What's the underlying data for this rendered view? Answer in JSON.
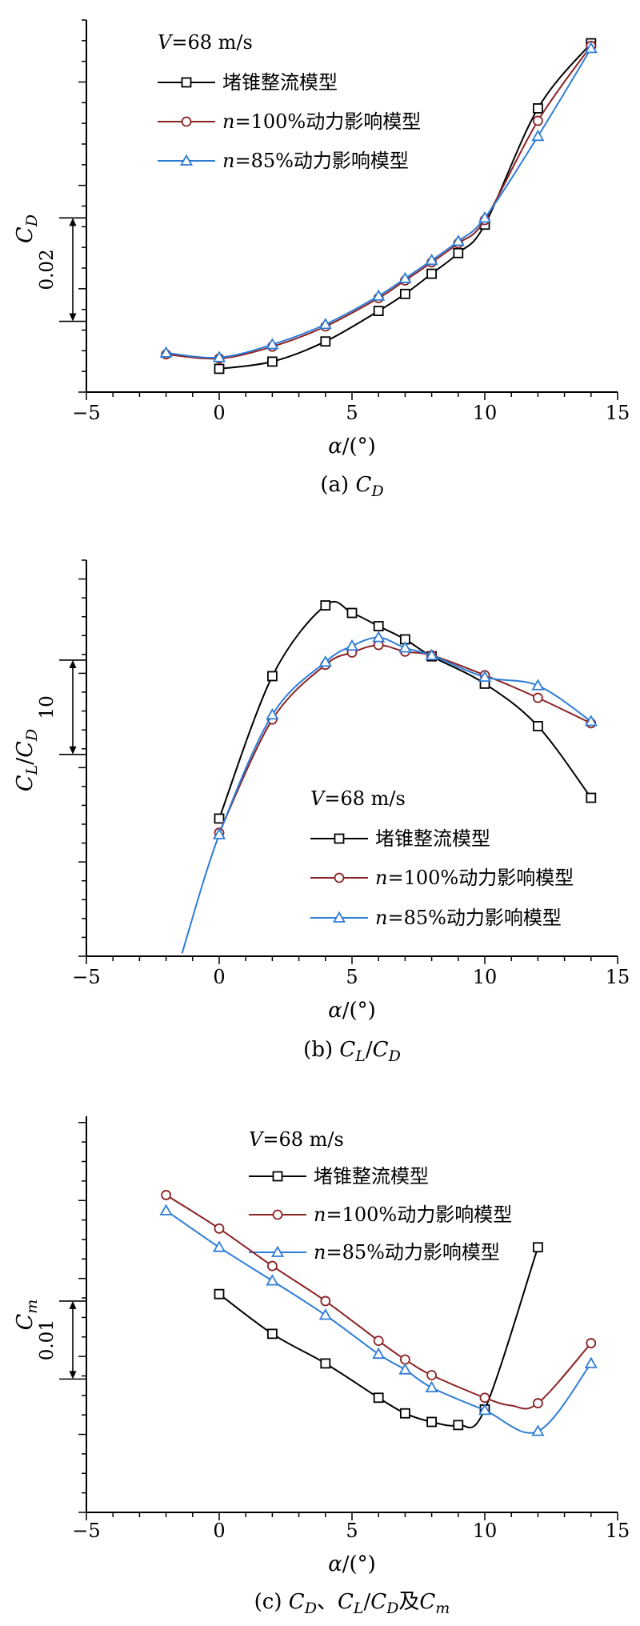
{
  "figure": {
    "background": "#ffffff"
  },
  "colors": {
    "series_black": "#000000",
    "series_darkred": "#8B2224",
    "series_blue": "#2E7CD6"
  },
  "chart_data": [
    {
      "id": "a",
      "type": "line",
      "caption_plain": "(a) CD",
      "caption_segs": [
        {
          "t": "(a) "
        },
        {
          "t": "C",
          "i": 1
        },
        {
          "t": "D",
          "i": 1,
          "sub": 1
        }
      ],
      "ylabel_plain": "CD",
      "ylabel_segs": [
        {
          "t": "C",
          "i": 1
        },
        {
          "t": "D",
          "i": 1,
          "sub": 1
        }
      ],
      "xlabel_plain": "α/(°)",
      "xlabel_segs": [
        {
          "t": "α",
          "i": 1
        },
        {
          "t": "/(°)"
        }
      ],
      "annotation_plain": "V=68 m/s",
      "annotation_segs": [
        {
          "t": "V",
          "i": 1
        },
        {
          "t": "=68 m/s"
        }
      ],
      "xlim": [
        -5,
        15
      ],
      "xticks": {
        "values": [
          -5,
          0,
          5,
          10,
          15
        ],
        "labels": [
          "−5",
          "0",
          "5",
          "10",
          "15"
        ],
        "minor_step": 1
      },
      "ylim": [
        0,
        0.072
      ],
      "ytick_minor_step": 0.004,
      "ytick_major_step": 0.02,
      "y_axis_numeric_labels": false,
      "scale_bar": {
        "label": "0.02",
        "from": 0.0137,
        "to": 0.0337
      },
      "series": [
        {
          "name": "堵锥整流模型",
          "name_segs": [
            {
              "t": "堵锥整流模型"
            }
          ],
          "marker": "square",
          "color": "#000000",
          "x": [
            0,
            2,
            4,
            6,
            7,
            8,
            9,
            10,
            12,
            14
          ],
          "y": [
            0.0045,
            0.0059,
            0.0098,
            0.0157,
            0.019,
            0.0229,
            0.0269,
            0.0324,
            0.0549,
            0.0675
          ]
        },
        {
          "name": "n=100%动力影响模型",
          "name_segs": [
            {
              "t": "n",
              "i": 1
            },
            {
              "t": "=100%动力影响模型"
            }
          ],
          "marker": "circle",
          "color": "#8B2224",
          "x": [
            -2,
            0,
            2,
            4,
            6,
            7,
            8,
            9,
            10,
            12,
            14
          ],
          "y": [
            0.0073,
            0.0065,
            0.0088,
            0.0127,
            0.0182,
            0.0216,
            0.0251,
            0.0288,
            0.0333,
            0.0525,
            0.067
          ]
        },
        {
          "name": "n=85%动力影响模型",
          "name_segs": [
            {
              "t": "n",
              "i": 1
            },
            {
              "t": "=85%动力影响模型"
            }
          ],
          "marker": "triangle",
          "color": "#2E7CD6",
          "x": [
            -2,
            0,
            2,
            4,
            6,
            7,
            8,
            9,
            10,
            12,
            14
          ],
          "y": [
            0.0076,
            0.0067,
            0.0092,
            0.0131,
            0.0186,
            0.022,
            0.0255,
            0.0292,
            0.0337,
            0.0495,
            0.0665
          ]
        }
      ]
    },
    {
      "id": "b",
      "type": "line",
      "caption_plain": "(b) CL/CD",
      "caption_segs": [
        {
          "t": "(b) "
        },
        {
          "t": "C",
          "i": 1
        },
        {
          "t": "L",
          "i": 1,
          "sub": 1
        },
        {
          "t": "/"
        },
        {
          "t": "C",
          "i": 1
        },
        {
          "t": "D",
          "i": 1,
          "sub": 1
        }
      ],
      "ylabel_plain": "CL/CD",
      "ylabel_segs": [
        {
          "t": "C",
          "i": 1
        },
        {
          "t": "L",
          "i": 1,
          "sub": 1
        },
        {
          "t": "/"
        },
        {
          "t": "C",
          "i": 1
        },
        {
          "t": "D",
          "i": 1,
          "sub": 1
        }
      ],
      "xlabel_plain": "α/(°)",
      "xlabel_segs": [
        {
          "t": "α",
          "i": 1
        },
        {
          "t": "/(°)"
        }
      ],
      "annotation_plain": "V=68 m/s",
      "annotation_segs": [
        {
          "t": "V",
          "i": 1
        },
        {
          "t": "=68 m/s"
        }
      ],
      "xlim": [
        -5,
        15
      ],
      "xticks": {
        "values": [
          -5,
          0,
          5,
          10,
          15
        ],
        "labels": [
          "−5",
          "0",
          "5",
          "10",
          "15"
        ],
        "minor_step": 1
      },
      "ylim": [
        0,
        42
      ],
      "ytick_minor_step": 2,
      "ytick_major_step": 10,
      "y_axis_numeric_labels": false,
      "scale_bar": {
        "label": "10",
        "from": 21.4,
        "to": 31.4
      },
      "series": [
        {
          "name": "堵锥整流模型",
          "name_segs": [
            {
              "t": "堵锥整流模型"
            }
          ],
          "marker": "square",
          "color": "#000000",
          "x": [
            0,
            2,
            4,
            5,
            6,
            7,
            8,
            10,
            12,
            14
          ],
          "y": [
            14.6,
            29.7,
            37.2,
            36.4,
            35.0,
            33.6,
            31.8,
            28.9,
            24.4,
            16.8
          ]
        },
        {
          "name": "n=100%动力影响模型",
          "name_segs": [
            {
              "t": "n",
              "i": 1
            },
            {
              "t": "=100%动力影响模型"
            }
          ],
          "marker": "circle",
          "color": "#8B2224",
          "x": [
            0,
            2,
            4,
            5,
            6,
            7,
            8,
            10,
            12,
            14
          ],
          "y": [
            13.1,
            25.1,
            30.9,
            32.2,
            33.0,
            32.3,
            31.9,
            29.8,
            27.4,
            24.7
          ]
        },
        {
          "name": "n=85%动力影响模型",
          "name_segs": [
            {
              "t": "n",
              "i": 1
            },
            {
              "t": "=85%动力影响模型"
            }
          ],
          "marker": "triangle",
          "color": "#2E7CD6",
          "x": [
            -1.4,
            0,
            2,
            4,
            5,
            6,
            7,
            8,
            10,
            12,
            14
          ],
          "y": [
            0.3,
            12.9,
            25.6,
            31.2,
            32.9,
            33.8,
            32.7,
            31.9,
            29.6,
            28.7,
            24.9
          ],
          "skip": [
            0
          ]
        }
      ]
    },
    {
      "id": "c",
      "type": "line",
      "caption_plain": "(c) CD、CL/CD及Cm",
      "caption_segs": [
        {
          "t": "(c) "
        },
        {
          "t": "C",
          "i": 1
        },
        {
          "t": "D",
          "i": 1,
          "sub": 1
        },
        {
          "t": "、"
        },
        {
          "t": "C",
          "i": 1
        },
        {
          "t": "L",
          "i": 1,
          "sub": 1
        },
        {
          "t": "/"
        },
        {
          "t": "C",
          "i": 1
        },
        {
          "t": "D",
          "i": 1,
          "sub": 1
        },
        {
          "t": "及"
        },
        {
          "t": "C",
          "i": 1
        },
        {
          "t": "m",
          "i": 1,
          "sub": 1
        }
      ],
      "ylabel_plain": "Cm",
      "ylabel_segs": [
        {
          "t": "C",
          "i": 1
        },
        {
          "t": "m",
          "i": 1,
          "sub": 1
        }
      ],
      "xlabel_plain": "α/(°)",
      "xlabel_segs": [
        {
          "t": "α",
          "i": 1
        },
        {
          "t": "/(°)"
        }
      ],
      "annotation_plain": "V=68 m/s",
      "annotation_segs": [
        {
          "t": "V",
          "i": 1
        },
        {
          "t": "=68 m/s"
        }
      ],
      "xlim": [
        -5,
        15
      ],
      "xticks": {
        "values": [
          -5,
          0,
          5,
          10,
          15
        ],
        "labels": [
          "−5",
          "0",
          "5",
          "10",
          "15"
        ],
        "minor_step": 1
      },
      "ylim": [
        0,
        0.0508
      ],
      "ytick_minor_step": 0.0025,
      "ytick_major_step": 0.01,
      "y_axis_numeric_labels": false,
      "scale_bar": {
        "label": "0.01",
        "from": 0.0171,
        "to": 0.0271
      },
      "series": [
        {
          "name": "堵锥整流模型",
          "name_segs": [
            {
              "t": "堵锥整流模型"
            }
          ],
          "marker": "square",
          "color": "#000000",
          "x": [
            0,
            2,
            4,
            6,
            7,
            8,
            9,
            10,
            12
          ],
          "y": [
            0.028,
            0.0229,
            0.0191,
            0.0147,
            0.0127,
            0.0116,
            0.0112,
            0.0132,
            0.034
          ]
        },
        {
          "name": "n=100%动力影响模型",
          "name_segs": [
            {
              "t": "n",
              "i": 1
            },
            {
              "t": "=100%动力影响模型"
            }
          ],
          "marker": "circle",
          "color": "#8B2224",
          "x": [
            -2,
            0,
            2,
            4,
            6,
            7,
            8,
            10,
            11,
            12,
            14
          ],
          "y": [
            0.0407,
            0.0364,
            0.0316,
            0.0271,
            0.022,
            0.0196,
            0.0176,
            0.0147,
            0.0137,
            0.014,
            0.0217
          ],
          "skip": [
            8
          ]
        },
        {
          "name": "n=85%动力影响模型",
          "name_segs": [
            {
              "t": "n",
              "i": 1
            },
            {
              "t": "=85%动力影响模型"
            }
          ],
          "marker": "triangle",
          "color": "#2E7CD6",
          "x": [
            -2,
            0,
            2,
            4,
            6,
            7,
            8,
            10,
            12,
            14
          ],
          "y": [
            0.0387,
            0.034,
            0.0297,
            0.0253,
            0.0203,
            0.0183,
            0.016,
            0.0131,
            0.0104,
            0.0191
          ]
        }
      ]
    }
  ]
}
